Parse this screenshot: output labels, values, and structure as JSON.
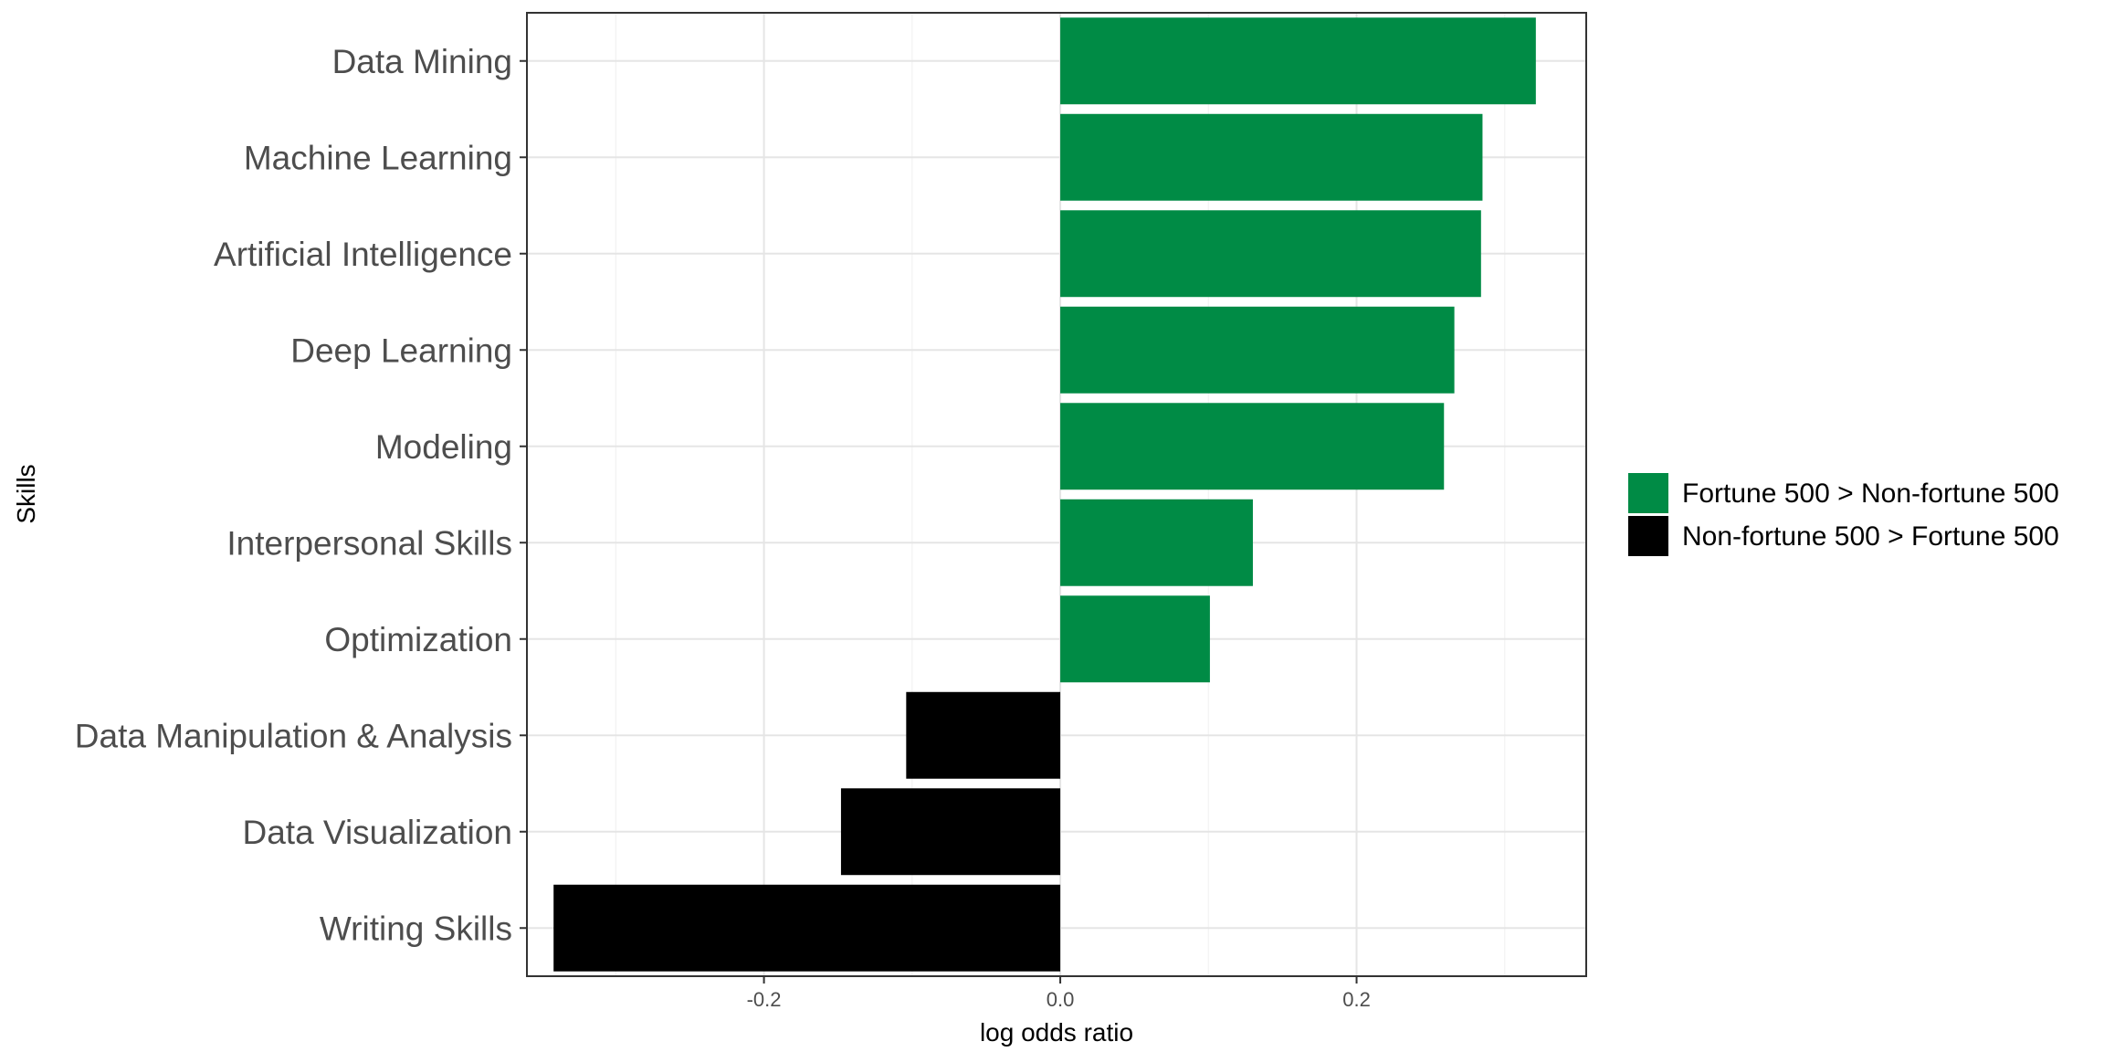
{
  "chart_data": {
    "type": "bar",
    "orientation": "horizontal",
    "categories": [
      "Data Mining",
      "Machine Learning",
      "Artificial Intelligence",
      "Deep Learning",
      "Modeling",
      "Interpersonal Skills",
      "Optimization",
      "Data Manipulation & Analysis",
      "Data Visualization",
      "Writing Skills"
    ],
    "values": [
      0.321,
      0.285,
      0.284,
      0.266,
      0.259,
      0.13,
      0.101,
      -0.104,
      -0.148,
      -0.342
    ],
    "groups": [
      "Fortune 500 > Non-fortune 500",
      "Fortune 500 > Non-fortune 500",
      "Fortune 500 > Non-fortune 500",
      "Fortune 500 > Non-fortune 500",
      "Fortune 500 > Non-fortune 500",
      "Fortune 500 > Non-fortune 500",
      "Fortune 500 > Non-fortune 500",
      "Non-fortune 500 > Fortune 500",
      "Non-fortune 500 > Fortune 500",
      "Non-fortune 500 > Fortune 500"
    ],
    "xlabel": "log odds ratio",
    "ylabel": "Skills",
    "xlim": [
      -0.36,
      0.355
    ],
    "xticks": [
      -0.2,
      0.0,
      0.2
    ],
    "xtick_labels": [
      "-0.2",
      "0.0",
      "0.2"
    ],
    "grid": true,
    "legend": {
      "placement": "right",
      "entries": [
        {
          "label": "Fortune 500 > Non-fortune 500",
          "color": "#008B45"
        },
        {
          "label": "Non-fortune 500 > Fortune 500",
          "color": "#000000"
        }
      ]
    }
  }
}
